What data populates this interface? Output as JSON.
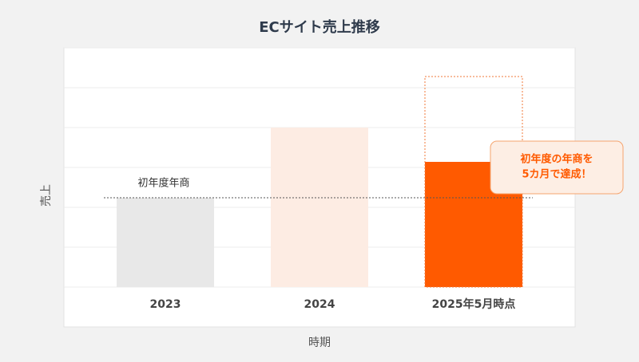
{
  "chart_data": {
    "type": "bar",
    "title": "ECサイト売上推移",
    "x_label": "時期",
    "y_label": "売上",
    "categories": [
      "2023",
      "2024",
      "2025年5月時点"
    ],
    "values": [
      2.24,
      4,
      3.14
    ],
    "colors": [
      "#e8e8e8",
      "#fdece3",
      "#ff5a00"
    ],
    "projected": [
      null,
      null,
      5.28
    ],
    "projected_color": "#f07a3a",
    "reference": {
      "value": 2.24,
      "label": "初年度年商"
    },
    "callout": [
      "初年度の年商を",
      "5カ月で達成！"
    ],
    "ylim": [
      0,
      6
    ],
    "yticks": [
      0,
      1,
      2,
      3,
      4,
      5,
      6
    ],
    "grid": true,
    "show_y_tick_labels": false
  }
}
